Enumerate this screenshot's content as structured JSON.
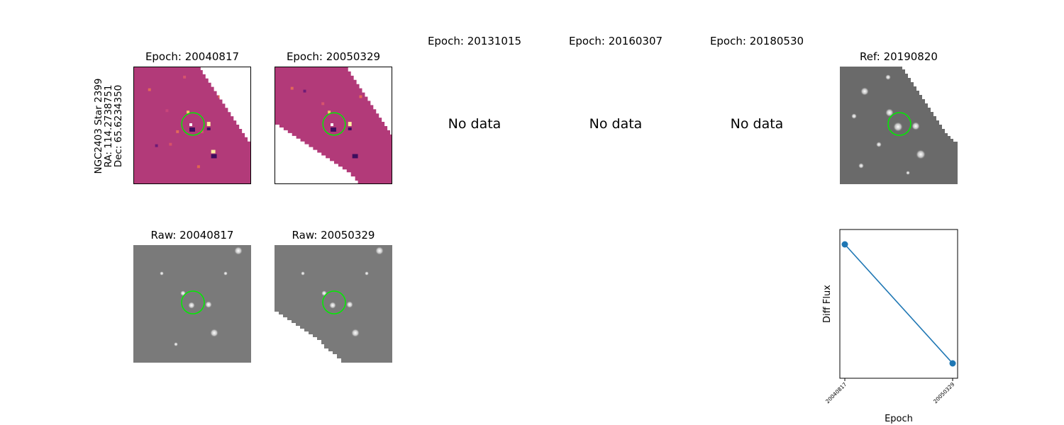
{
  "row_label": {
    "line1": "NGC2403 Star 2399",
    "line2": "RA: 114.2738751",
    "line3": "Dec: 65.6234350"
  },
  "diff_panels": [
    {
      "title": "Epoch: 20040817"
    },
    {
      "title": "Epoch: 20050329"
    }
  ],
  "empty_panels": [
    {
      "title": "Epoch: 20131015",
      "message": "No data"
    },
    {
      "title": "Epoch: 20160307",
      "message": "No data"
    },
    {
      "title": "Epoch: 20180530",
      "message": "No data"
    }
  ],
  "ref_panel": {
    "title": "Ref: 20190820"
  },
  "raw_panels": [
    {
      "title": "Raw: 20040817"
    },
    {
      "title": "Raw: 20050329"
    }
  ],
  "colors": {
    "diff_background": "#b23a79",
    "raw_background": "#787878",
    "marker_circle": "#00ee00",
    "series": "#1f77b4"
  },
  "chart_data": {
    "type": "line",
    "xlabel": "Epoch",
    "ylabel": "Diff Flux",
    "categories": [
      "20040817",
      "20050329"
    ],
    "series": [
      {
        "values": [
          0.9,
          0.1
        ],
        "marker": "circle"
      }
    ],
    "ylim": [
      0.0,
      1.0
    ],
    "y_ticks_shown": false,
    "grid": false
  }
}
